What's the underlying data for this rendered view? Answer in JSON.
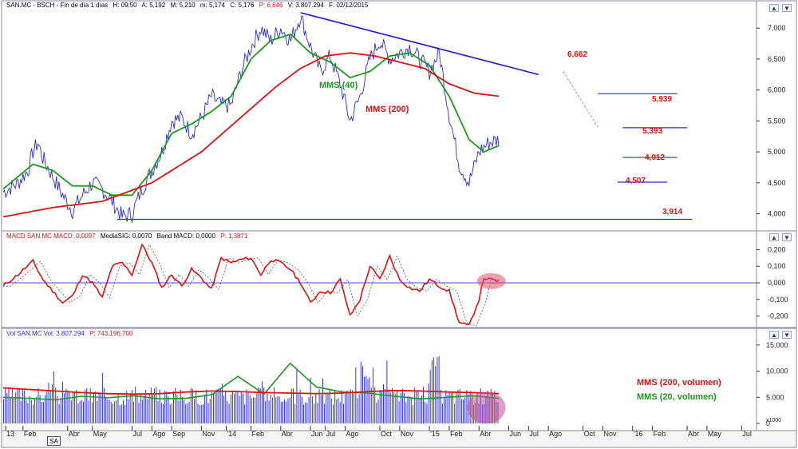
{
  "colors": {
    "price": "#2b2bd6",
    "mms40": "#1a9a1a",
    "mms200": "#e01010",
    "trend": "#2222cc",
    "level_line": "#2233cc",
    "level_label": "#e01010",
    "macd": "#e01010",
    "signal": "#555555",
    "zero": "#4a4ad0",
    "volume": "#3333ee",
    "highlight": "#e0506a",
    "axis_text": "#222222",
    "header_red": "#e01010"
  },
  "header_price": {
    "symbol": "SAN.MC - BSCH - Fin de día 1 días",
    "h": "H: 09:50",
    "a": "A: 5,192",
    "m": "M: 5,210",
    "mn": "m: 5,174",
    "c": "C: 5,176",
    "p": "P: 6,646",
    "v": "V: 3.807.294",
    "f": "F: 02/12/2015"
  },
  "header_macd": {
    "name": "MACD SAN.MC MACD: 0,0097",
    "signal": "MediaSIG: 0,0070",
    "band": "Band MACD: 0,0000",
    "p": "P: 1,3871"
  },
  "header_vol": {
    "name": "Vol SAN.MC Vol: 3.807.294",
    "p": "P: 743.196.700"
  },
  "buttons": {
    "up": "▲",
    "down": "▼"
  },
  "tab_label": "SA",
  "chart_data": [
    {
      "type": "line",
      "panel": "price",
      "y_ticks": [
        "7,000",
        "6,500",
        "6,000",
        "5,500",
        "5,000",
        "4,500",
        "4,000"
      ],
      "ylim": [
        3.8,
        7.3
      ],
      "series": [
        {
          "name": "",
          "points": [
            [
              0,
              4.35
            ],
            [
              3,
              4.5
            ],
            [
              5,
              4.7
            ],
            [
              6,
              5.0
            ],
            [
              7,
              5.15
            ],
            [
              8,
              4.9
            ],
            [
              10,
              4.6
            ],
            [
              12,
              4.3
            ],
            [
              14,
              4.05
            ],
            [
              16,
              4.3
            ],
            [
              18,
              4.5
            ],
            [
              20,
              4.4
            ],
            [
              22,
              4.2
            ],
            [
              24,
              3.95
            ],
            [
              26,
              4.0
            ],
            [
              28,
              4.4
            ],
            [
              30,
              4.7
            ],
            [
              32,
              5.0
            ],
            [
              34,
              5.5
            ],
            [
              36,
              5.55
            ],
            [
              38,
              5.3
            ],
            [
              40,
              5.55
            ],
            [
              42,
              5.9
            ],
            [
              44,
              5.75
            ],
            [
              46,
              5.75
            ],
            [
              48,
              6.3
            ],
            [
              50,
              6.7
            ],
            [
              52,
              7.0
            ],
            [
              54,
              6.8
            ],
            [
              56,
              7.0
            ],
            [
              58,
              6.8
            ],
            [
              60,
              7.2
            ],
            [
              62,
              6.7
            ],
            [
              64,
              6.3
            ],
            [
              66,
              6.55
            ],
            [
              68,
              6.1
            ],
            [
              70,
              5.5
            ],
            [
              72,
              5.9
            ],
            [
              74,
              6.5
            ],
            [
              76,
              6.8
            ],
            [
              78,
              6.5
            ],
            [
              80,
              6.6
            ],
            [
              82,
              6.7
            ],
            [
              84,
              6.5
            ],
            [
              86,
              6.3
            ],
            [
              88,
              6.6
            ],
            [
              90,
              5.6
            ],
            [
              92,
              4.8
            ],
            [
              94,
              4.5
            ],
            [
              96,
              5.0
            ],
            [
              98,
              5.15
            ],
            [
              100,
              5.2
            ]
          ]
        },
        {
          "name": "MMS (40)",
          "points": [
            [
              0,
              4.4
            ],
            [
              6,
              4.8
            ],
            [
              10,
              4.7
            ],
            [
              14,
              4.45
            ],
            [
              18,
              4.45
            ],
            [
              22,
              4.3
            ],
            [
              26,
              4.3
            ],
            [
              30,
              4.7
            ],
            [
              34,
              5.3
            ],
            [
              38,
              5.45
            ],
            [
              42,
              5.65
            ],
            [
              46,
              5.9
            ],
            [
              50,
              6.5
            ],
            [
              54,
              6.8
            ],
            [
              58,
              6.9
            ],
            [
              62,
              6.6
            ],
            [
              66,
              6.45
            ],
            [
              70,
              6.2
            ],
            [
              74,
              6.3
            ],
            [
              78,
              6.55
            ],
            [
              82,
              6.6
            ],
            [
              86,
              6.4
            ],
            [
              90,
              5.9
            ],
            [
              94,
              5.2
            ],
            [
              97,
              5.0
            ],
            [
              100,
              5.1
            ]
          ]
        },
        {
          "name": "MMS (200)",
          "points": [
            [
              0,
              3.95
            ],
            [
              10,
              4.1
            ],
            [
              20,
              4.2
            ],
            [
              30,
              4.5
            ],
            [
              40,
              5.0
            ],
            [
              50,
              5.7
            ],
            [
              55,
              6.05
            ],
            [
              60,
              6.35
            ],
            [
              65,
              6.55
            ],
            [
              70,
              6.6
            ],
            [
              75,
              6.55
            ],
            [
              80,
              6.45
            ],
            [
              85,
              6.35
            ],
            [
              90,
              6.1
            ],
            [
              95,
              5.95
            ],
            [
              100,
              5.9
            ]
          ]
        }
      ],
      "trendline": {
        "from": [
          60,
          7.25
        ],
        "to": [
          108,
          6.25
        ]
      },
      "levels": [
        {
          "label": "6,662",
          "value": 6.66
        },
        {
          "label": "5,939",
          "value": 5.94
        },
        {
          "label": "5,393",
          "value": 5.39
        },
        {
          "label": "4,912",
          "value": 4.91
        },
        {
          "label": "4,507",
          "value": 4.51
        },
        {
          "label": "3,914",
          "value": 3.91
        }
      ],
      "annotations": [
        "MMS (40)",
        "MMS (200)"
      ]
    },
    {
      "type": "line",
      "panel": "macd",
      "y_ticks": [
        "0,200",
        "0,100",
        "0,000",
        "-0,100",
        "-0,200"
      ],
      "ylim": [
        -0.26,
        0.26
      ],
      "series": [
        {
          "name": "",
          "points": [
            [
              0,
              -0.02
            ],
            [
              3,
              0.05
            ],
            [
              6,
              0.13
            ],
            [
              8,
              0.02
            ],
            [
              10,
              -0.05
            ],
            [
              12,
              -0.12
            ],
            [
              14,
              -0.08
            ],
            [
              16,
              0.05
            ],
            [
              18,
              0.0
            ],
            [
              20,
              -0.09
            ],
            [
              22,
              0.1
            ],
            [
              24,
              0.12
            ],
            [
              26,
              0.05
            ],
            [
              28,
              0.23
            ],
            [
              30,
              0.12
            ],
            [
              32,
              -0.03
            ],
            [
              34,
              0.05
            ],
            [
              36,
              -0.02
            ],
            [
              38,
              0.08
            ],
            [
              40,
              0.03
            ],
            [
              42,
              -0.04
            ],
            [
              44,
              0.15
            ],
            [
              46,
              0.12
            ],
            [
              48,
              0.14
            ],
            [
              50,
              0.15
            ],
            [
              52,
              0.05
            ],
            [
              54,
              0.14
            ],
            [
              56,
              0.12
            ],
            [
              58,
              0.08
            ],
            [
              60,
              0.0
            ],
            [
              62,
              -0.12
            ],
            [
              64,
              -0.05
            ],
            [
              66,
              -0.06
            ],
            [
              68,
              0.02
            ],
            [
              70,
              -0.2
            ],
            [
              72,
              -0.1
            ],
            [
              74,
              0.1
            ],
            [
              76,
              0.02
            ],
            [
              78,
              0.16
            ],
            [
              80,
              0.02
            ],
            [
              82,
              -0.03
            ],
            [
              84,
              -0.05
            ],
            [
              86,
              0.02
            ],
            [
              88,
              -0.02
            ],
            [
              90,
              -0.05
            ],
            [
              92,
              -0.24
            ],
            [
              94,
              -0.26
            ],
            [
              96,
              -0.1
            ],
            [
              97,
              0.03
            ],
            [
              98,
              0.02
            ],
            [
              100,
              0.01
            ]
          ]
        }
      ]
    },
    {
      "type": "bar",
      "panel": "volume",
      "y_ticks": [
        "15.000",
        "10.000",
        "5.000",
        "0"
      ],
      "ylim": [
        0,
        16500
      ],
      "series": [
        {
          "name": "MMS (200, volumen)",
          "values": [
            6800,
            6500,
            6200,
            5900,
            5700,
            5600,
            5700,
            6000,
            6200,
            6100,
            5900,
            5800,
            5700,
            5800,
            6100,
            6300,
            6200,
            6000,
            5900,
            5700
          ]
        },
        {
          "name": "MMS (20, volumen)",
          "values": [
            5000,
            4800,
            4500,
            5200,
            4900,
            5300,
            4700,
            4800,
            5500,
            9000,
            5600,
            11500,
            7000,
            6000,
            5800,
            5200,
            4700,
            5000,
            5300,
            4800
          ]
        }
      ],
      "annotations": [
        "MMS (200, volumen)",
        "MMS (20, volumen)"
      ]
    }
  ],
  "x_labels": [
    {
      "t": "13",
      "p": 0.5
    },
    {
      "t": "Feb",
      "p": 4
    },
    {
      "t": "Abr",
      "p": 13
    },
    {
      "t": "May",
      "p": 18
    },
    {
      "t": "Jul",
      "p": 26
    },
    {
      "t": "Ago",
      "p": 30
    },
    {
      "t": "Sep",
      "p": 34
    },
    {
      "t": "Nov",
      "p": 40
    },
    {
      "t": "'14",
      "p": 45
    },
    {
      "t": "Feb",
      "p": 50
    },
    {
      "t": "Abr",
      "p": 56
    },
    {
      "t": "Jun",
      "p": 62
    },
    {
      "t": "Jul",
      "p": 65
    },
    {
      "t": "Ago",
      "p": 69
    },
    {
      "t": "Oct",
      "p": 76
    },
    {
      "t": "Nov",
      "p": 80
    },
    {
      "t": "'15",
      "p": 86
    },
    {
      "t": "Feb",
      "p": 90
    },
    {
      "t": "Abr",
      "p": 96
    },
    {
      "t": "Jun",
      "p": 102
    },
    {
      "t": "Jul",
      "p": 106
    },
    {
      "t": "Ago",
      "p": 110
    },
    {
      "t": "Oct",
      "p": 117
    },
    {
      "t": "Nov",
      "p": 121
    },
    {
      "t": "'16",
      "p": 127
    },
    {
      "t": "Feb",
      "p": 131
    },
    {
      "t": "Abr",
      "p": 138
    },
    {
      "t": "May",
      "p": 142
    },
    {
      "t": "Jul",
      "p": 149
    }
  ],
  "vol_scale_label": "x1000"
}
